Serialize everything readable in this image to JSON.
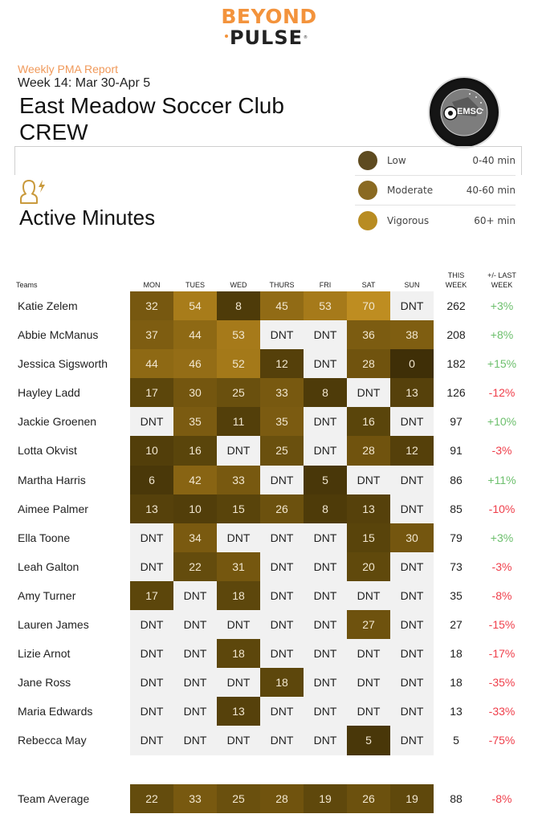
{
  "brand": {
    "line1": "BEYOND",
    "line2": "PULSE",
    "registered": "®",
    "color_primary": "#f3933c",
    "color_dark": "#222222"
  },
  "header": {
    "subtitle": "Weekly PMA Report",
    "week": "Week 14: Mar 30-Apr 5",
    "club_name": "East Meadow Soccer Club",
    "team_name": "CREW",
    "club_logo_text": "EMSC"
  },
  "section": {
    "icon": "person-lightning-icon",
    "title": "Active Minutes",
    "icon_color": "#c99a3d"
  },
  "legend": [
    {
      "label": "Low",
      "range": "0-40 min",
      "color": "#5e4b20"
    },
    {
      "label": "Moderate",
      "range": "40-60 min",
      "color": "#8a6a22"
    },
    {
      "label": "Vigorous",
      "range": "60+ min",
      "color": "#b88c22"
    }
  ],
  "colors": {
    "dnt_bg": "#f1f1f1",
    "dnt_text": "#222222",
    "cell_text": "#f1e6cf",
    "positive": "#6cbf6c",
    "negative": "#ef3e4a"
  },
  "table": {
    "headers": {
      "teams": "Teams",
      "days": [
        "MON",
        "TUES",
        "WED",
        "THURS",
        "FRI",
        "SAT",
        "SUN"
      ],
      "this_week_line1": "THIS",
      "this_week_line2": "WEEK",
      "last_week_line1": "+/- LAST",
      "last_week_line2": "WEEK"
    },
    "rows": [
      {
        "name": "Katie Zelem",
        "days": [
          "32",
          "54",
          "8",
          "45",
          "53",
          "70",
          "DNT"
        ],
        "total": "262",
        "delta": "+3%"
      },
      {
        "name": "Abbie McManus",
        "days": [
          "37",
          "44",
          "53",
          "DNT",
          "DNT",
          "36",
          "38"
        ],
        "total": "208",
        "delta": "+8%"
      },
      {
        "name": "Jessica Sigsworth",
        "days": [
          "44",
          "46",
          "52",
          "12",
          "DNT",
          "28",
          "0"
        ],
        "total": "182",
        "delta": "+15%"
      },
      {
        "name": "Hayley Ladd",
        "days": [
          "17",
          "30",
          "25",
          "33",
          "8",
          "DNT",
          "13"
        ],
        "total": "126",
        "delta": "-12%"
      },
      {
        "name": "Jackie Groenen",
        "days": [
          "DNT",
          "35",
          "11",
          "35",
          "DNT",
          "16",
          "DNT"
        ],
        "total": "97",
        "delta": "+10%"
      },
      {
        "name": "Lotta Okvist",
        "days": [
          "10",
          "16",
          "DNT",
          "25",
          "DNT",
          "28",
          "12"
        ],
        "total": "91",
        "delta": "-3%"
      },
      {
        "name": "Martha Harris",
        "days": [
          "6",
          "42",
          "33",
          "DNT",
          "5",
          "DNT",
          "DNT"
        ],
        "total": "86",
        "delta": "+11%"
      },
      {
        "name": "Aimee Palmer",
        "days": [
          "13",
          "10",
          "15",
          "26",
          "8",
          "13",
          "DNT"
        ],
        "total": "85",
        "delta": "-10%"
      },
      {
        "name": "Ella Toone",
        "days": [
          "DNT",
          "34",
          "DNT",
          "DNT",
          "DNT",
          "15",
          "30"
        ],
        "total": "79",
        "delta": "+3%"
      },
      {
        "name": "Leah Galton",
        "days": [
          "DNT",
          "22",
          "31",
          "DNT",
          "DNT",
          "20",
          "DNT"
        ],
        "total": "73",
        "delta": "-3%"
      },
      {
        "name": "Amy Turner",
        "days": [
          "17",
          "DNT",
          "18",
          "DNT",
          "DNT",
          "DNT",
          "DNT"
        ],
        "total": "35",
        "delta": "-8%"
      },
      {
        "name": "Lauren James",
        "days": [
          "DNT",
          "DNT",
          "DNT",
          "DNT",
          "DNT",
          "27",
          "DNT"
        ],
        "total": "27",
        "delta": "-15%"
      },
      {
        "name": "Lizie Arnot",
        "days": [
          "DNT",
          "DNT",
          "18",
          "DNT",
          "DNT",
          "DNT",
          "DNT"
        ],
        "total": "18",
        "delta": "-17%"
      },
      {
        "name": "Jane Ross",
        "days": [
          "DNT",
          "DNT",
          "DNT",
          "18",
          "DNT",
          "DNT",
          "DNT"
        ],
        "total": "18",
        "delta": "-35%"
      },
      {
        "name": "Maria Edwards",
        "days": [
          "DNT",
          "DNT",
          "13",
          "DNT",
          "DNT",
          "DNT",
          "DNT"
        ],
        "total": "13",
        "delta": "-33%"
      },
      {
        "name": "Rebecca May",
        "days": [
          "DNT",
          "DNT",
          "DNT",
          "DNT",
          "DNT",
          "5",
          "DNT"
        ],
        "total": "5",
        "delta": "-75%"
      }
    ],
    "average": {
      "name": "Team Average",
      "days": [
        "22",
        "33",
        "25",
        "28",
        "19",
        "26",
        "19"
      ],
      "total": "88",
      "delta": "-8%"
    }
  }
}
